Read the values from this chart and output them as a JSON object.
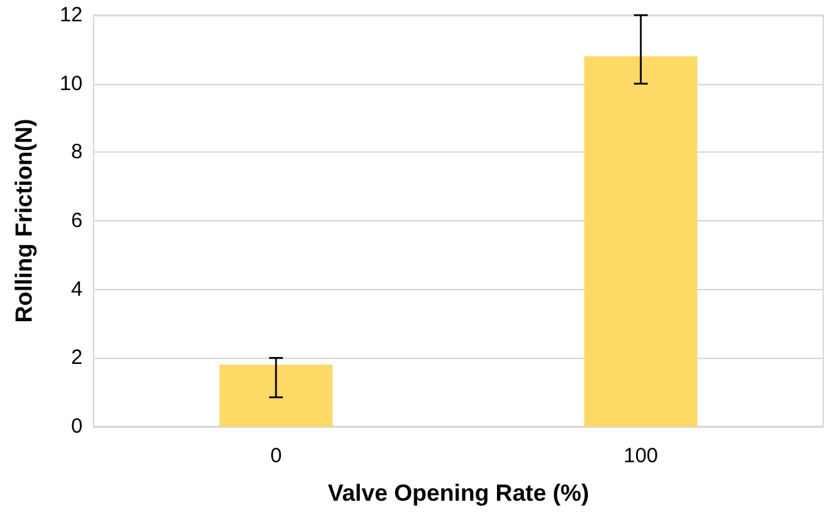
{
  "chart_data": {
    "type": "bar",
    "xlabel": "Valve Opening Rate (%)",
    "ylabel": "Rolling Friction(N)",
    "categories": [
      "0",
      "100"
    ],
    "values": [
      1.8,
      10.8
    ],
    "color": "#fed966",
    "errors": [
      [
        0.85,
        2.0
      ],
      [
        10.0,
        12.0
      ]
    ],
    "ylim": [
      0,
      12
    ],
    "yticks": [
      0,
      2,
      4,
      6,
      8,
      10,
      12
    ],
    "grid": "y"
  }
}
